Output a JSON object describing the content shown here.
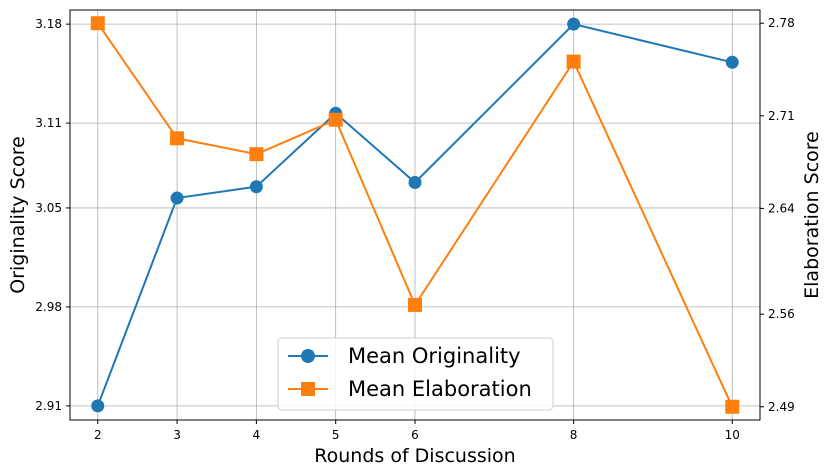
{
  "chart_data": {
    "type": "line",
    "title": "",
    "xlabel": "Rounds of Discussion",
    "ylabel_left": "Originality Score",
    "ylabel_right": "Elaboration Score",
    "x": [
      2,
      3,
      4,
      5,
      6,
      8,
      10
    ],
    "x_ticks": [
      "2",
      "3",
      "4",
      "5",
      "6",
      "8",
      "10"
    ],
    "ylim_left": [
      2.9,
      3.19
    ],
    "ylim_right": [
      2.48,
      2.79
    ],
    "y_ticks_left": [
      "2.91",
      "2.98",
      "3.05",
      "3.11",
      "3.18"
    ],
    "y_ticks_right": [
      "2.49",
      "2.56",
      "2.64",
      "2.71",
      "2.78"
    ],
    "grid": true,
    "legend_position": "bottom-center",
    "series": [
      {
        "name": "Mean Originality",
        "axis": "left",
        "color": "#1f77b4",
        "marker": "circle",
        "values": [
          2.91,
          3.057,
          3.065,
          3.117,
          3.068,
          3.18,
          3.153
        ]
      },
      {
        "name": "Mean Elaboration",
        "axis": "right",
        "color": "#ff7f0e",
        "marker": "square",
        "values": [
          2.78,
          2.693,
          2.681,
          2.707,
          2.567,
          2.751,
          2.49
        ]
      }
    ]
  }
}
